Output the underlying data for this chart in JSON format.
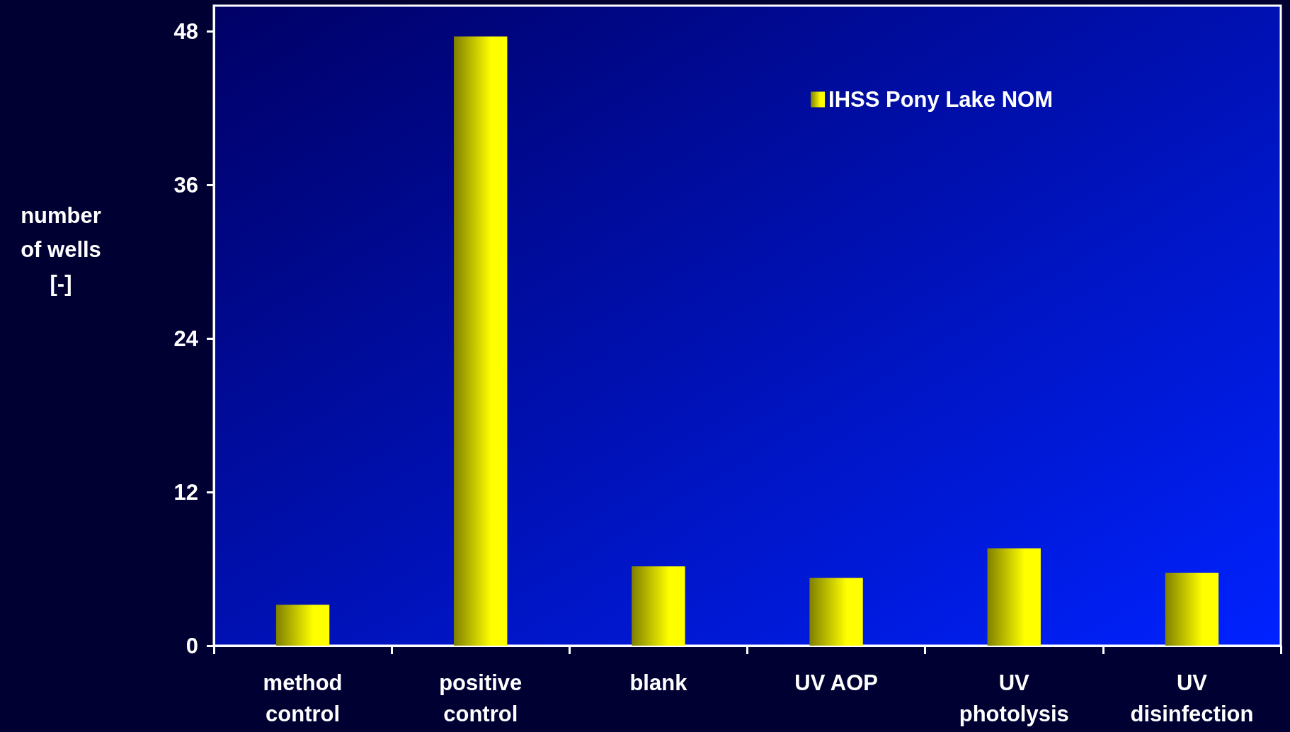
{
  "chart_data": {
    "type": "bar",
    "ylabel": "number\nof wells\n[-]",
    "categories": [
      "method\ncontrol",
      "positive\ncontrol",
      "blank",
      "UV AOP",
      "UV\nphotolysis",
      "UV\ndisinfection"
    ],
    "series": [
      {
        "name": "IHSS Pony Lake NOM",
        "color": "#ffff00",
        "values": [
          3.2,
          47.6,
          6.2,
          5.3,
          7.6,
          5.7
        ]
      }
    ],
    "ylim": [
      0,
      50
    ],
    "yticks": [
      0,
      12,
      24,
      36,
      48
    ],
    "grid": false,
    "legend": "top right"
  }
}
